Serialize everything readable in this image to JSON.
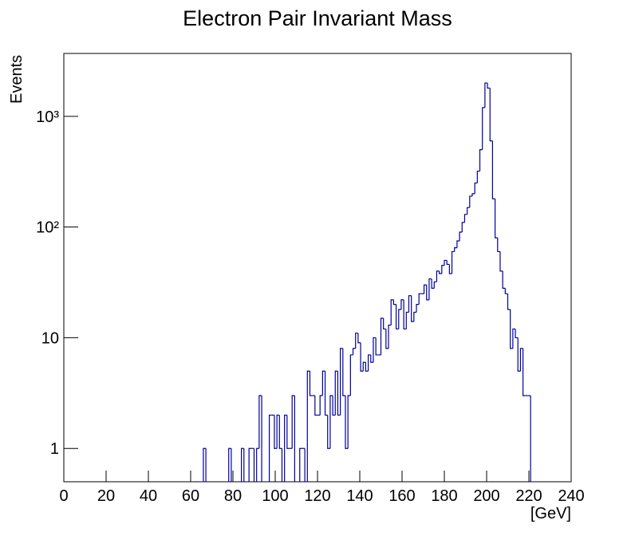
{
  "chart_data": {
    "type": "histogram",
    "title": "Electron Pair Invariant Mass",
    "x_label": "[GeV]",
    "y_label": "Events",
    "color": "#000099",
    "log_y": true,
    "xlim": [
      0,
      240
    ],
    "xticks": [
      0,
      20,
      40,
      60,
      80,
      100,
      120,
      140,
      160,
      180,
      200,
      220,
      240
    ],
    "ylim": [
      0.5,
      3700
    ],
    "yticks": [
      1,
      10,
      {
        "value": 100,
        "label": "10²"
      },
      {
        "value": 1000,
        "label": "10³"
      }
    ],
    "bins": [
      0,
      1.2,
      2.4,
      3.6,
      4.8,
      6,
      7.2,
      8.4,
      9.6,
      10.8,
      12,
      13.2,
      14.4,
      15.6,
      16.8,
      18,
      19.2,
      20.4,
      21.6,
      22.8,
      24,
      25.2,
      26.4,
      27.6,
      28.8,
      30,
      31.2,
      32.4,
      33.6,
      34.8,
      36,
      37.2,
      38.4,
      39.6,
      40.8,
      42,
      43.2,
      44.4,
      45.6,
      46.8,
      48,
      49.2,
      50.4,
      51.6,
      52.8,
      54,
      55.2,
      56.4,
      57.6,
      58.8,
      60,
      61.2,
      62.4,
      63.6,
      64.8,
      66,
      67.2,
      68.4,
      69.6,
      70.8,
      72,
      73.2,
      74.4,
      75.6,
      76.8,
      78,
      79.2,
      80.4,
      81.6,
      82.8,
      84,
      85.2,
      86.4,
      87.6,
      88.8,
      90,
      91.2,
      92.4,
      93.6,
      94.8,
      96,
      97.2,
      98.4,
      99.6,
      100.8,
      102,
      103.2,
      104.4,
      105.6,
      106.8,
      108,
      109.2,
      110.4,
      111.6,
      112.8,
      114,
      115.2,
      116.4,
      117.6,
      118.8,
      120,
      121.2,
      122.4,
      123.6,
      124.8,
      126,
      127.2,
      128.4,
      129.6,
      130.8,
      132,
      133.2,
      134.4,
      135.6,
      136.8,
      138,
      139.2,
      140.4,
      141.6,
      142.8,
      144,
      145.2,
      146.4,
      147.6,
      148.8,
      150,
      151.2,
      152.4,
      153.6,
      154.8,
      156,
      157.2,
      158.4,
      159.6,
      160.8,
      162,
      163.2,
      164.4,
      165.6,
      166.8,
      168,
      169.2,
      170.4,
      171.6,
      172.8,
      174,
      175.2,
      176.4,
      177.6,
      178.8,
      180,
      181.2,
      182.4,
      183.6,
      184.8,
      186,
      187.2,
      188.4,
      189.6,
      190.8,
      192,
      193.2,
      194.4,
      195.6,
      196.8,
      198,
      199.2,
      200.4,
      201.6,
      202.8,
      204,
      205.2,
      206.4,
      207.6,
      208.8,
      210,
      211.2,
      212.4,
      213.6,
      214.8,
      216,
      217.2,
      218.4,
      219.6,
      220.8,
      222,
      223.2,
      224.4,
      225.6,
      226.8,
      228,
      229.2,
      230.4,
      231.6,
      232.8,
      234,
      235.2,
      236.4,
      237.6,
      238.8,
      240
    ],
    "values": [
      0,
      0,
      0,
      0,
      0,
      0,
      0,
      0,
      0,
      0,
      0,
      0,
      0,
      0,
      0,
      0,
      0,
      0,
      0,
      0,
      0,
      0,
      0,
      0,
      0,
      0,
      0,
      0,
      0,
      0,
      0,
      0,
      0,
      0,
      0,
      0,
      0,
      0,
      0,
      0,
      0,
      0,
      0,
      0,
      0,
      0,
      0,
      0,
      0,
      0,
      0,
      0,
      0,
      0,
      0,
      1,
      0,
      0,
      0,
      0,
      0,
      0,
      0,
      0,
      0,
      1,
      0,
      0,
      0,
      0,
      1,
      0,
      0,
      1,
      1,
      0,
      1,
      3,
      0,
      0,
      0,
      2,
      2,
      1,
      2,
      1,
      0,
      2,
      1,
      1,
      3,
      0,
      0,
      1,
      1,
      0,
      5,
      3,
      3,
      2,
      2,
      3,
      5,
      2,
      1,
      3,
      2,
      5,
      2,
      8,
      3,
      1,
      3,
      7,
      8,
      11,
      9,
      5,
      6,
      5,
      7,
      6,
      10,
      7,
      7,
      15,
      12,
      8,
      13,
      22,
      20,
      12,
      18,
      22,
      12,
      17,
      24,
      14,
      17,
      20,
      25,
      25,
      30,
      22,
      34,
      28,
      32,
      40,
      38,
      45,
      50,
      46,
      38,
      60,
      65,
      75,
      90,
      110,
      130,
      150,
      190,
      200,
      250,
      320,
      500,
      1200,
      2000,
      1800,
      600,
      180,
      80,
      60,
      40,
      28,
      25,
      18,
      8,
      12,
      10,
      5,
      8,
      3,
      3,
      3,
      0,
      0,
      0,
      0,
      0,
      0,
      0,
      0,
      0,
      0,
      0,
      0,
      0,
      0,
      0,
      0
    ]
  }
}
